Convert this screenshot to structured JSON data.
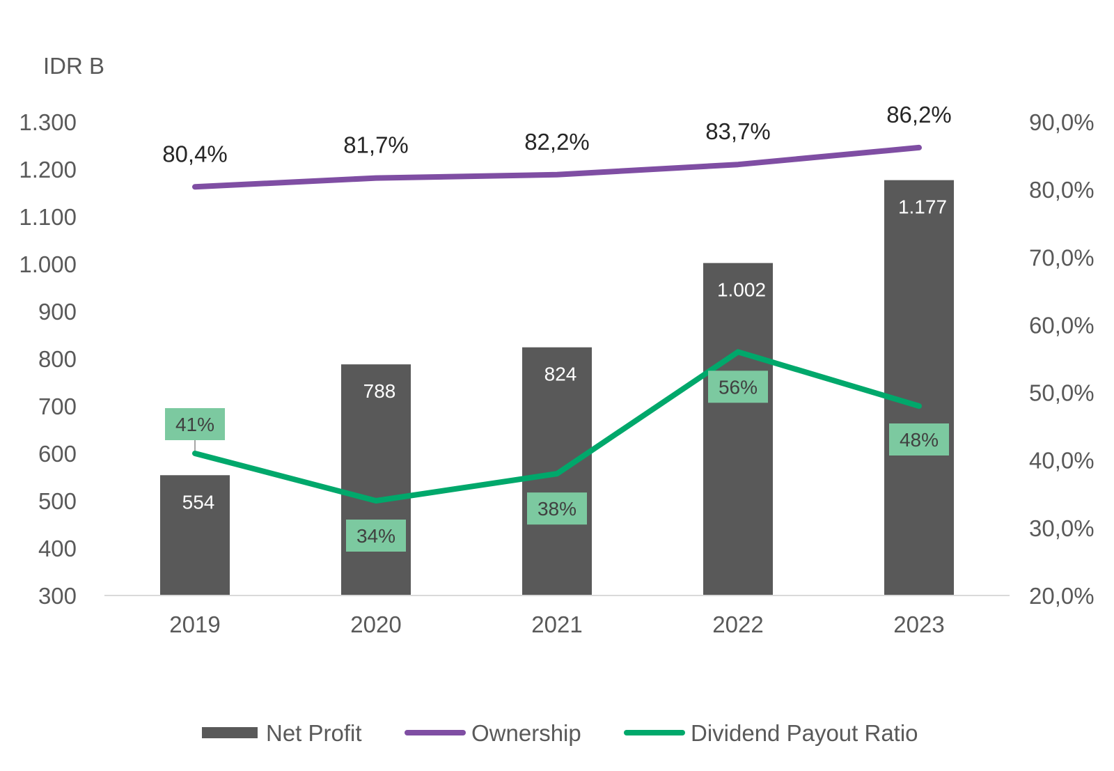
{
  "chart_data": {
    "type": "bar",
    "unit_label": "IDR B",
    "categories": [
      "2019",
      "2020",
      "2021",
      "2022",
      "2023"
    ],
    "y_left": {
      "min": 300,
      "max": 1300,
      "ticks": [
        {
          "value": 300,
          "label": "300"
        },
        {
          "value": 400,
          "label": "400"
        },
        {
          "value": 500,
          "label": "500"
        },
        {
          "value": 600,
          "label": "600"
        },
        {
          "value": 700,
          "label": "700"
        },
        {
          "value": 800,
          "label": "800"
        },
        {
          "value": 900,
          "label": "900"
        },
        {
          "value": 1000,
          "label": "1.000"
        },
        {
          "value": 1100,
          "label": "1.100"
        },
        {
          "value": 1200,
          "label": "1.200"
        },
        {
          "value": 1300,
          "label": "1.300"
        }
      ]
    },
    "y_right": {
      "min": 20,
      "max": 90,
      "ticks": [
        {
          "value": 20,
          "label": "20,0%"
        },
        {
          "value": 30,
          "label": "30,0%"
        },
        {
          "value": 40,
          "label": "40,0%"
        },
        {
          "value": 50,
          "label": "50,0%"
        },
        {
          "value": 60,
          "label": "60,0%"
        },
        {
          "value": 70,
          "label": "70,0%"
        },
        {
          "value": 80,
          "label": "80,0%"
        },
        {
          "value": 90,
          "label": "90,0%"
        }
      ]
    },
    "grid": false,
    "legend_position": "bottom",
    "series": [
      {
        "name": "Net Profit",
        "kind": "bar",
        "axis": "left",
        "color": "#595959",
        "values": [
          554,
          788,
          824,
          1002,
          1177
        ],
        "labels": [
          "554",
          "788",
          "824",
          "1.002",
          "1.177"
        ]
      },
      {
        "name": "Ownership",
        "kind": "line",
        "axis": "right",
        "color": "#7f4ea3",
        "values": [
          80.4,
          81.7,
          82.2,
          83.7,
          86.2
        ],
        "labels": [
          "80,4%",
          "81,7%",
          "82,2%",
          "83,7%",
          "86,2%"
        ]
      },
      {
        "name": "Dividend Payout Ratio",
        "kind": "line",
        "axis": "right",
        "color": "#00a86b",
        "label_box_color": "#7cc9a0",
        "values": [
          41,
          34,
          38,
          56,
          48
        ],
        "labels": [
          "41%",
          "34%",
          "38%",
          "56%",
          "48%"
        ]
      }
    ]
  }
}
